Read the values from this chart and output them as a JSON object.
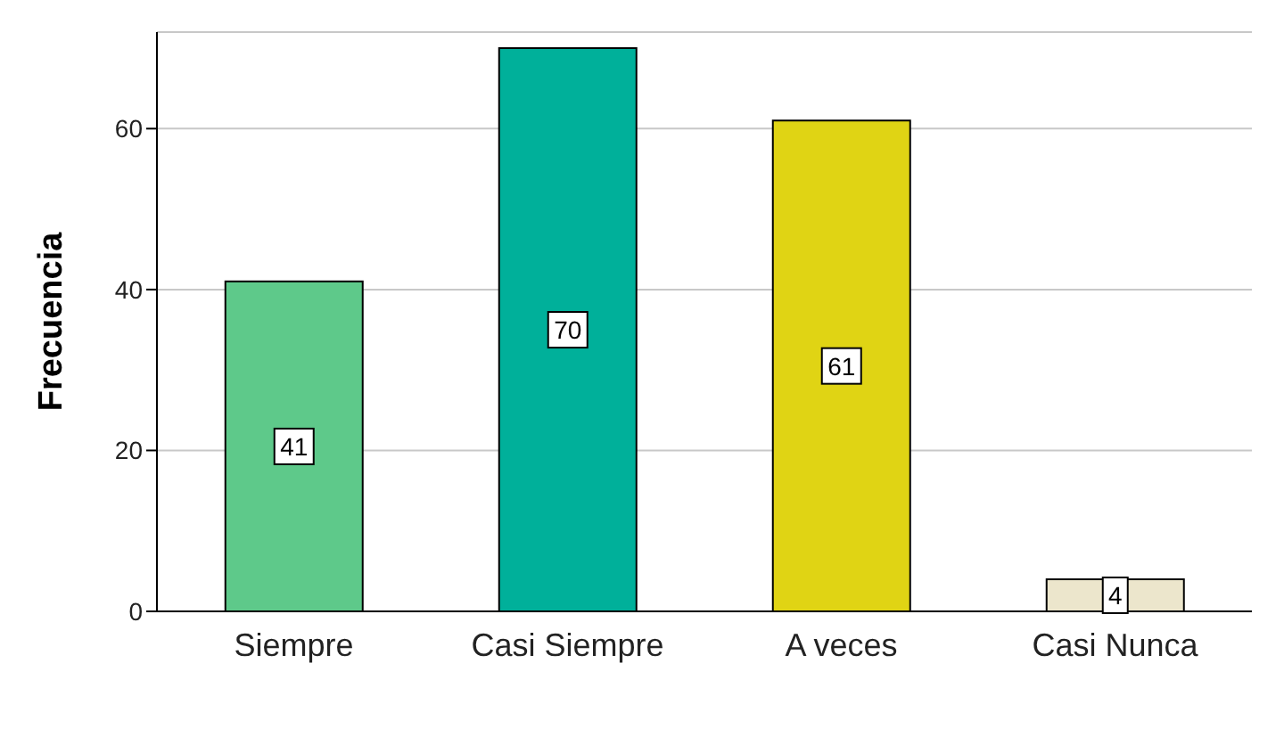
{
  "chart_data": {
    "type": "bar",
    "ylabel": "Frecuencia",
    "categories": [
      "Siempre",
      "Casi Siempre",
      "A veces",
      "Casi Nunca"
    ],
    "values": [
      41,
      70,
      61,
      4
    ],
    "colors": [
      "#5ec98a",
      "#00b09a",
      "#e0d414",
      "#ece6cc"
    ],
    "ylim": [
      0,
      72
    ],
    "yticks": [
      0,
      20,
      40,
      60
    ],
    "grid": "y",
    "data_labels": true
  }
}
